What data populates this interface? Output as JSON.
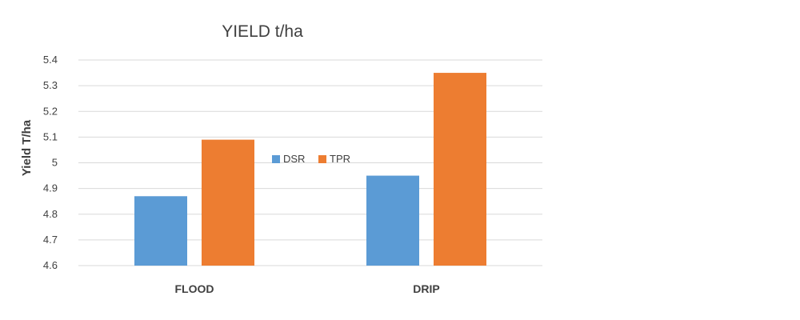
{
  "chart_data": {
    "type": "bar",
    "title": "YIELD t/ha",
    "xlabel": "",
    "ylabel": "Yield  T/ha",
    "categories": [
      "FLOOD",
      "DRIP"
    ],
    "series": [
      {
        "name": "DSR",
        "values": [
          4.87,
          4.95
        ],
        "color": "#5B9BD5"
      },
      {
        "name": "TPR",
        "values": [
          5.09,
          5.35
        ],
        "color": "#ED7D31"
      }
    ],
    "ylim": [
      4.6,
      5.4
    ],
    "yticks": [
      "4.6",
      "4.7",
      "4.8",
      "4.9",
      "5",
      "5.1",
      "5.2",
      "5.3",
      "5.4"
    ],
    "grid": true,
    "legend_position": "center",
    "gridline_color": "#D9D9D9"
  }
}
